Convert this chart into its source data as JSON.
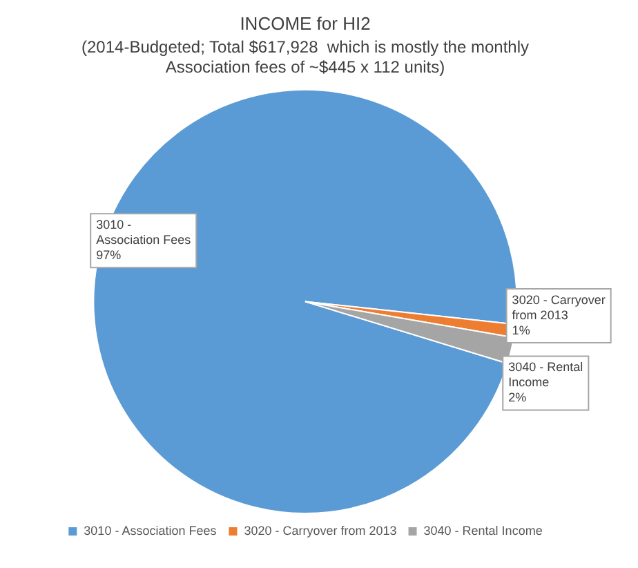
{
  "chart_data": {
    "type": "pie",
    "title": "INCOME for HI2",
    "subtitle": "(2014-Budgeted; Total $617,928  which is mostly the monthly Association fees of ~$445 x 112 units)",
    "categories": [
      "3010 - Association Fees",
      "3020 - Carryover from 2013",
      "3040 - Rental Income"
    ],
    "values": [
      97,
      1,
      2
    ],
    "colors": [
      "#5b9bd5",
      "#ed7d31",
      "#a5a5a5"
    ],
    "value_labels": [
      "97%",
      "1%",
      "2%"
    ],
    "legend": "bottom"
  }
}
